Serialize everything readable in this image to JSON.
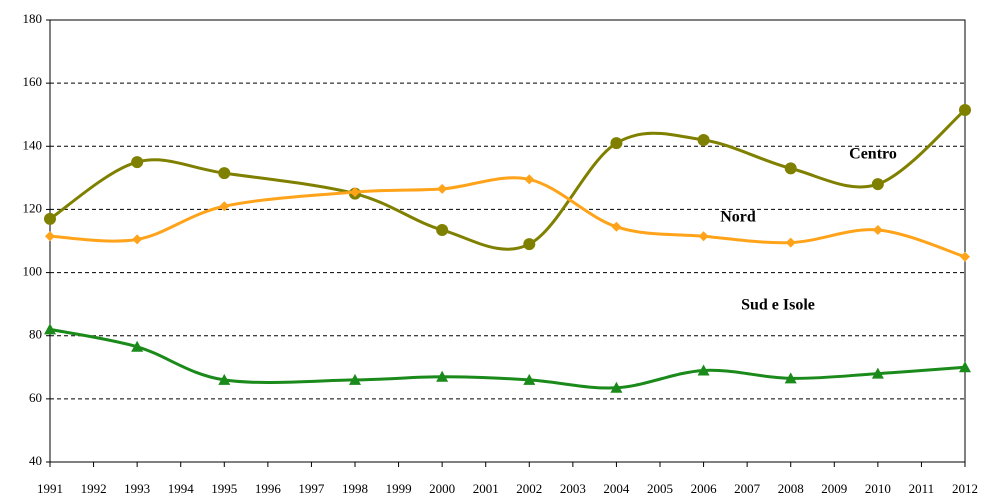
{
  "chart_data": {
    "type": "line",
    "x": [
      1991,
      1993,
      1995,
      1998,
      2000,
      2002,
      2004,
      2006,
      2008,
      2010,
      2012
    ],
    "series": [
      {
        "name": "Centro",
        "color": "#808000",
        "marker": "circle",
        "values": [
          117,
          135,
          131.5,
          125,
          113.5,
          109,
          141,
          142,
          133,
          128,
          151.5
        ]
      },
      {
        "name": "Nord",
        "color": "#ffa31a",
        "marker": "diamond",
        "values": [
          111.5,
          110.5,
          121,
          125.5,
          126.5,
          129.5,
          114.5,
          111.5,
          109.5,
          113.5,
          105
        ]
      },
      {
        "name": "Sud e Isole",
        "color": "#1a8a1a",
        "marker": "triangle",
        "values": [
          82,
          76.5,
          66,
          66,
          67,
          66,
          63.5,
          69,
          66.5,
          68,
          70
        ]
      }
    ],
    "xlim": [
      1991,
      2012
    ],
    "xticks": [
      1991,
      1992,
      1993,
      1994,
      1995,
      1996,
      1997,
      1998,
      1999,
      2000,
      2001,
      2002,
      2003,
      2004,
      2005,
      2006,
      2007,
      2008,
      2009,
      2010,
      2011,
      2012
    ],
    "ylim": [
      40,
      180
    ],
    "yticks": [
      40,
      60,
      80,
      100,
      120,
      140,
      160,
      180
    ],
    "grid": true
  }
}
